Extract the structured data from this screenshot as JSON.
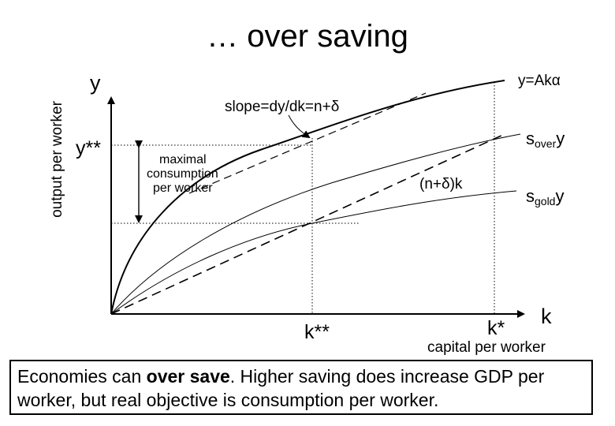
{
  "title": "… over saving",
  "axes": {
    "y_label": "y",
    "y_axis_title": "output per worker",
    "x_label": "k",
    "x_axis_title": "capital per worker"
  },
  "marks": {
    "y_double_star": "y**",
    "k_double_star": "k**",
    "k_star": "k*"
  },
  "curves": {
    "production": "y=Akα",
    "s_over": {
      "prefix": "s",
      "sub": "over",
      "suffix": "y"
    },
    "s_gold": {
      "prefix": "s",
      "sub": "gold",
      "suffix": "y"
    },
    "depreciation": "(n+δ)k"
  },
  "annotations": {
    "slope": "slope=dy/dk=n+δ",
    "max_consumption": [
      "maximal",
      "consumption",
      "per worker"
    ]
  },
  "caption": {
    "part1": "Economies can ",
    "emphasis": "over save",
    "part2": ". Higher saving does increase GDP per worker, but real objective is consumption per worker."
  },
  "colors": {
    "ink": "#000000",
    "background": "#ffffff"
  }
}
